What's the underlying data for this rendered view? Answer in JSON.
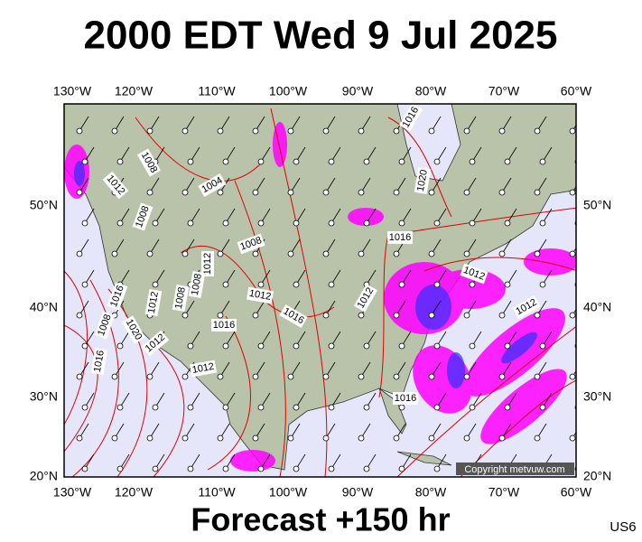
{
  "title": "2000 EDT Wed 9 Jul 2025",
  "footer": "Forecast +150 hr",
  "region": "US6",
  "copyright": "Copyright metvuw.com",
  "lon_labels": [
    "130°W",
    "120°W",
    "110°W",
    "100°W",
    "90°W",
    "80°W",
    "70°W",
    "60°W"
  ],
  "lat_labels": [
    "20°N",
    "30°N",
    "40°N",
    "50°N"
  ],
  "isobar_labels": [
    "1016",
    "1020",
    "1008",
    "1012",
    "1004",
    "1008",
    "1016",
    "1008",
    "1012",
    "1012",
    "1012",
    "1016",
    "1012",
    "1008",
    "1008",
    "1012",
    "1016",
    "1012",
    "1016",
    "1020",
    "1008",
    "1012",
    "1016",
    "1012",
    "1016"
  ]
}
